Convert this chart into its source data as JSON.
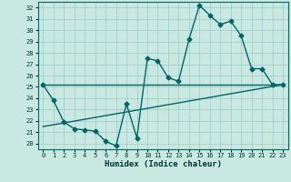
{
  "xlabel": "Humidex (Indice chaleur)",
  "bg_color": "#c8e8e0",
  "line_color": "#006666",
  "grid_color": "#99cccc",
  "ylim": [
    19.5,
    32.5
  ],
  "xlim": [
    -0.5,
    23.5
  ],
  "yticks": [
    20,
    21,
    22,
    23,
    24,
    25,
    26,
    27,
    28,
    29,
    30,
    31,
    32
  ],
  "xticks": [
    0,
    1,
    2,
    3,
    4,
    5,
    6,
    7,
    8,
    9,
    10,
    11,
    12,
    13,
    14,
    15,
    16,
    17,
    18,
    19,
    20,
    21,
    22,
    23
  ],
  "line1_x": [
    0,
    1,
    2,
    3,
    4,
    5,
    6,
    7,
    8,
    9,
    10,
    11,
    12,
    13,
    14,
    15,
    16,
    17,
    18,
    19,
    20,
    21,
    22,
    23
  ],
  "line1_y": [
    25.2,
    23.8,
    21.9,
    21.3,
    21.2,
    21.1,
    20.2,
    19.8,
    23.5,
    20.5,
    27.5,
    27.3,
    25.8,
    25.5,
    29.2,
    32.2,
    31.3,
    30.5,
    30.8,
    29.5,
    26.6,
    26.6,
    25.2,
    25.2
  ],
  "line2_x": [
    0,
    23
  ],
  "line2_y": [
    25.2,
    25.2
  ],
  "line3_x": [
    0,
    23
  ],
  "line3_y": [
    21.5,
    25.2
  ],
  "marker": "D",
  "markersize": 2.5,
  "linewidth": 1.0
}
